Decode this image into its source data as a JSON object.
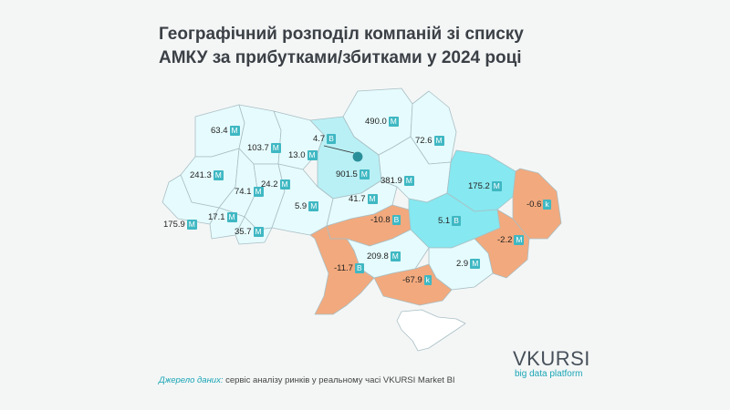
{
  "title": {
    "line1": "Географічний розподіл компаній зі списку",
    "line2": "АМКУ за прибутками/збитками у 2024 році"
  },
  "colors": {
    "profit_light": "#e6fbfd",
    "profit_mid": "#b9f0f5",
    "profit_strong": "#86e8f0",
    "loss": "#f2a97d",
    "crimea": "#ffffff",
    "border": "#9fb4ba",
    "badge": "#3fb8c3"
  },
  "regions": [
    {
      "id": "volyn",
      "value": "63.4",
      "unit": "M"
    },
    {
      "id": "rivne",
      "value": "103.7",
      "unit": "M"
    },
    {
      "id": "zhytomyr",
      "value": "13.0",
      "unit": "M"
    },
    {
      "id": "kyiv-city",
      "value": "4.7",
      "unit": "B"
    },
    {
      "id": "kyiv-oblast",
      "value": "901.5",
      "unit": "M"
    },
    {
      "id": "chernihiv",
      "value": "490.0",
      "unit": "M"
    },
    {
      "id": "sumy",
      "value": "72.6",
      "unit": "M"
    },
    {
      "id": "lviv",
      "value": "241.3",
      "unit": "M"
    },
    {
      "id": "ternopil",
      "value": "74.1",
      "unit": "M"
    },
    {
      "id": "khmelnytskyi",
      "value": "24.2",
      "unit": "M"
    },
    {
      "id": "vinnytsia",
      "value": "5.9",
      "unit": "M"
    },
    {
      "id": "cherkasy",
      "value": "41.7",
      "unit": "M"
    },
    {
      "id": "poltava",
      "value": "381.9",
      "unit": "M"
    },
    {
      "id": "kharkiv",
      "value": "175.2",
      "unit": "M"
    },
    {
      "id": "luhansk",
      "value": "-0.6",
      "unit": "k"
    },
    {
      "id": "zakarpattia",
      "value": "175.9",
      "unit": "M"
    },
    {
      "id": "ivano-frankivsk",
      "value": "17.1",
      "unit": "M"
    },
    {
      "id": "chernivtsi",
      "value": "35.7",
      "unit": "M"
    },
    {
      "id": "kirovohrad",
      "value": "-10.8",
      "unit": "B"
    },
    {
      "id": "dnipro",
      "value": "5.1",
      "unit": "B"
    },
    {
      "id": "donetsk",
      "value": "-2.2",
      "unit": "M"
    },
    {
      "id": "mykolaiv",
      "value": "209.8",
      "unit": "M"
    },
    {
      "id": "odesa",
      "value": "-11.7",
      "unit": "B"
    },
    {
      "id": "zaporizhzhia",
      "value": "2.9",
      "unit": "M"
    },
    {
      "id": "kherson",
      "value": "-67.9",
      "unit": "k"
    }
  ],
  "source": {
    "label": "Джерело даних:",
    "text": " сервіс аналізу ринків у реальному часі VKURSI Market BI"
  },
  "brand": {
    "name": "VKURSI",
    "tagline": "big data platform"
  }
}
